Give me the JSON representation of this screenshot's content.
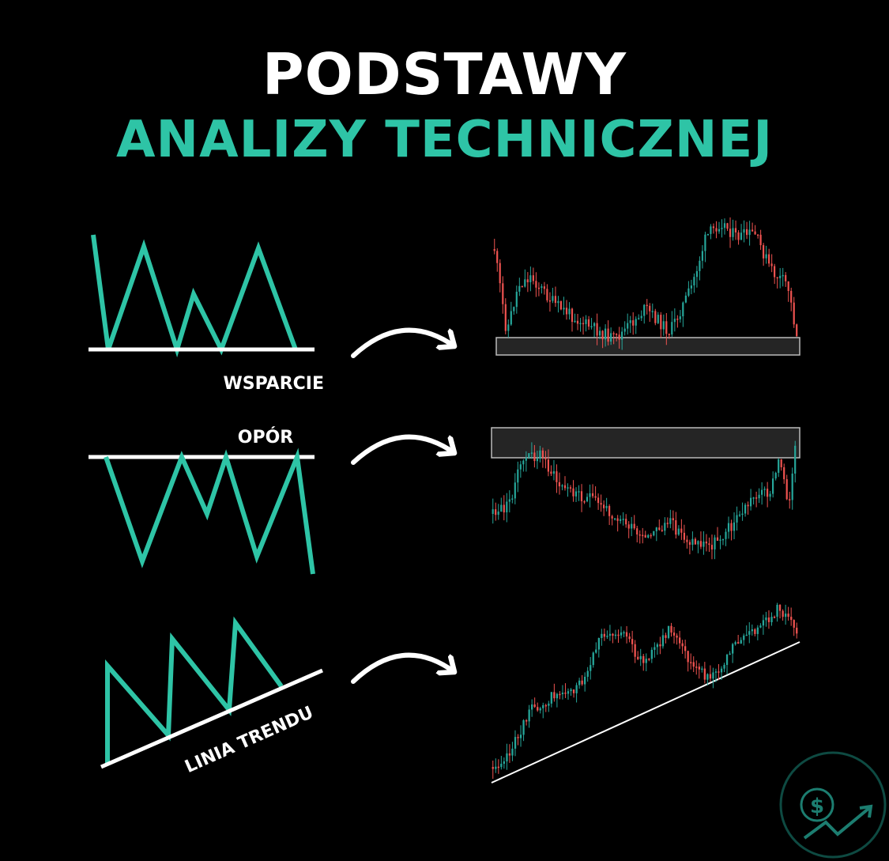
{
  "title": {
    "line1": "PODSTAWY",
    "line2": "ANALIZY TECHNICZNEJ"
  },
  "colors": {
    "background": "#000000",
    "accent": "#2ec4a6",
    "text": "#ffffff",
    "candle_up": "#26a69a",
    "candle_down": "#ef5350"
  },
  "patterns": [
    {
      "label": "WSPARCIE",
      "icon": "support-zigzag"
    },
    {
      "label": "OPÓR",
      "icon": "resistance-zigzag"
    },
    {
      "label": "LINIA TRENDU",
      "icon": "trendline-zigzag"
    }
  ],
  "logo": {
    "symbol": "$",
    "icon": "dollar-growth-arrow-logo"
  }
}
